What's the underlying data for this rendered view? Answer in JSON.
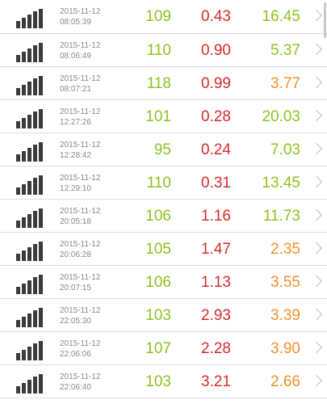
{
  "colors": {
    "green": "#8dc21f",
    "red": "#d62b2b",
    "orange": "#f0902a"
  },
  "results": [
    {
      "date": "2015-11-12",
      "time": "08:05:39",
      "ping": "109",
      "download": "0.43",
      "upload": "16.45",
      "ping_color": "#8dc21f",
      "down_color": "#d62b2b",
      "up_color": "#8dc21f"
    },
    {
      "date": "2015-11-12",
      "time": "08:06:49",
      "ping": "110",
      "download": "0.90",
      "upload": "5.37",
      "ping_color": "#8dc21f",
      "down_color": "#d62b2b",
      "up_color": "#8dc21f"
    },
    {
      "date": "2015-11-12",
      "time": "08:07:21",
      "ping": "118",
      "download": "0.99",
      "upload": "3.77",
      "ping_color": "#8dc21f",
      "down_color": "#d62b2b",
      "up_color": "#f0902a"
    },
    {
      "date": "2015-11-12",
      "time": "12:27:26",
      "ping": "101",
      "download": "0.28",
      "upload": "20.03",
      "ping_color": "#8dc21f",
      "down_color": "#d62b2b",
      "up_color": "#8dc21f"
    },
    {
      "date": "2015-11-12",
      "time": "12:28:42",
      "ping": "95",
      "download": "0.24",
      "upload": "7.03",
      "ping_color": "#8dc21f",
      "down_color": "#d62b2b",
      "up_color": "#8dc21f"
    },
    {
      "date": "2015-11-12",
      "time": "12:29:10",
      "ping": "110",
      "download": "0.31",
      "upload": "13.45",
      "ping_color": "#8dc21f",
      "down_color": "#d62b2b",
      "up_color": "#8dc21f"
    },
    {
      "date": "2015-11-12",
      "time": "20:05:18",
      "ping": "106",
      "download": "1.16",
      "upload": "11.73",
      "ping_color": "#8dc21f",
      "down_color": "#d62b2b",
      "up_color": "#8dc21f"
    },
    {
      "date": "2015-11-12",
      "time": "20:06:28",
      "ping": "105",
      "download": "1.47",
      "upload": "2.35",
      "ping_color": "#8dc21f",
      "down_color": "#d62b2b",
      "up_color": "#f0902a"
    },
    {
      "date": "2015-11-12",
      "time": "20:07:15",
      "ping": "106",
      "download": "1.13",
      "upload": "3.55",
      "ping_color": "#8dc21f",
      "down_color": "#d62b2b",
      "up_color": "#f0902a"
    },
    {
      "date": "2015-11-12",
      "time": "22:05:30",
      "ping": "103",
      "download": "2.93",
      "upload": "3.39",
      "ping_color": "#8dc21f",
      "down_color": "#d62b2b",
      "up_color": "#f0902a"
    },
    {
      "date": "2015-11-12",
      "time": "22:06:06",
      "ping": "107",
      "download": "2.28",
      "upload": "3.90",
      "ping_color": "#8dc21f",
      "down_color": "#d62b2b",
      "up_color": "#f0902a"
    },
    {
      "date": "2015-11-12",
      "time": "22:06:40",
      "ping": "103",
      "download": "3.21",
      "upload": "2.66",
      "ping_color": "#8dc21f",
      "down_color": "#d62b2b",
      "up_color": "#f0902a"
    }
  ]
}
